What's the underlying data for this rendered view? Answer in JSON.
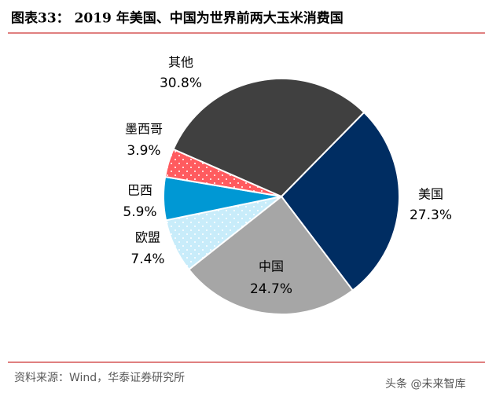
{
  "title": "图表33： 2019 年美国、中国为世界前两大玉米消费国",
  "chart_data": {
    "type": "pie",
    "categories": [
      "美国",
      "中国",
      "欧盟",
      "巴西",
      "墨西哥",
      "其他"
    ],
    "values": [
      27.3,
      24.7,
      7.4,
      5.9,
      3.9,
      30.8
    ],
    "value_labels": [
      "27.3%",
      "24.7%",
      "7.4%",
      "5.9%",
      "3.9%",
      "30.8%"
    ],
    "colors": [
      "#002d62",
      "#a6a6a6",
      "#c8ecfa",
      "#0098d4",
      "#ff5b5f",
      "#404040"
    ]
  },
  "source": "资料来源：Wind，华泰证券研究所",
  "watermark": "头条 @未来智库"
}
